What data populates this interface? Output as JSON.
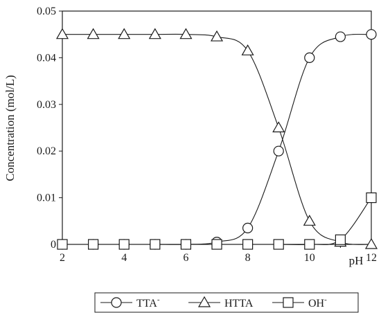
{
  "chart_data": {
    "type": "line",
    "xlabel": "pH",
    "ylabel": "Concentration (mol/L)",
    "xlim": [
      2,
      12
    ],
    "ylim": [
      0,
      0.05
    ],
    "xticks": [
      "2",
      "4",
      "6",
      "8",
      "10",
      "12"
    ],
    "yticks": [
      "0",
      "0.01",
      "0.02",
      "0.03",
      "0.04",
      "0.05"
    ],
    "grid": false,
    "legend_position": "bottom",
    "series": [
      {
        "name": "TTA",
        "name_sup": "-",
        "marker": "circle",
        "x": [
          2,
          3,
          4,
          5,
          6,
          7,
          8,
          9,
          10,
          11,
          12
        ],
        "y": [
          0,
          0,
          0,
          0,
          0,
          0.0005,
          0.0035,
          0.02,
          0.04,
          0.0445,
          0.045
        ]
      },
      {
        "name": "HTTA",
        "name_sup": "",
        "marker": "triangle",
        "x": [
          2,
          3,
          4,
          5,
          6,
          7,
          8,
          9,
          10,
          11,
          12
        ],
        "y": [
          0.045,
          0.045,
          0.045,
          0.045,
          0.045,
          0.0445,
          0.0415,
          0.025,
          0.005,
          0.0005,
          0
        ]
      },
      {
        "name": "OH",
        "name_sup": "-",
        "marker": "square",
        "x": [
          2,
          3,
          4,
          5,
          6,
          7,
          8,
          9,
          10,
          11,
          12
        ],
        "y": [
          0,
          0,
          0,
          0,
          0,
          0,
          0,
          0,
          0,
          0.001,
          0.01
        ]
      }
    ]
  }
}
